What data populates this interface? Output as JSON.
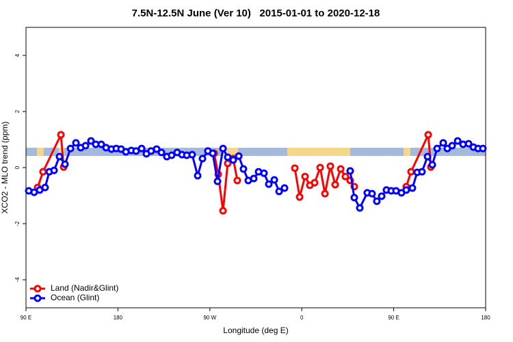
{
  "chart_data": {
    "type": "line",
    "title": "7.5N-12.5N June (Ver 10)   2015-01-01 to 2020-12-18",
    "x_label": "Longitude (deg E)",
    "y_label": "XCO2 - MLO trend (ppm)",
    "xlim": [
      90,
      540
    ],
    "xticks": [
      {
        "value": 90,
        "label": "90 E"
      },
      {
        "value": 180,
        "label": "180"
      },
      {
        "value": 270,
        "label": "90 W"
      },
      {
        "value": 360,
        "label": "0"
      },
      {
        "value": 450,
        "label": "90 E"
      },
      {
        "value": 540,
        "label": "180"
      }
    ],
    "ylim": [
      -5,
      5
    ],
    "yticks": [
      -4,
      -2,
      0,
      2,
      4
    ],
    "legend": "bottom-left",
    "series": [
      {
        "name": "Land (Nadir&Glint)",
        "color": "#ff0000",
        "x": [
          101.4,
          106.7,
          124.2,
          126.9,
          null,
          274.2,
          278.2,
          282.9,
          287.5,
          292.9,
          296.9,
          null,
          353.2,
          357.9,
          363.2,
          367.9,
          372.6,
          378.0,
          382.7,
          388.0,
          392.7,
          398.1,
          402.7,
          407.4,
          411.4,
          null,
          462.3,
          467.0,
          483.8,
          486.4
        ],
        "values": [
          -0.71,
          -0.15,
          1.17,
          0.02,
          null,
          0.51,
          -0.24,
          -1.54,
          0.15,
          0.32,
          -0.46,
          null,
          -0.02,
          -1.05,
          -0.32,
          -0.63,
          -0.54,
          0.0,
          -0.93,
          0.05,
          -0.61,
          -0.05,
          -0.32,
          -0.46,
          -0.68,
          null,
          -0.68,
          -0.15,
          1.17,
          0.02
        ]
      },
      {
        "name": "Ocean (Glint)",
        "color": "#0000ff",
        "x": [
          92.7,
          98.0,
          103.4,
          108.7,
          112.8,
          117.5,
          122.8,
          128.2,
          133.6,
          138.9,
          143.6,
          148.3,
          153.6,
          158.3,
          163.7,
          168.4,
          173.7,
          178.4,
          183.1,
          187.8,
          193.1,
          197.8,
          203.2,
          207.9,
          212.5,
          217.9,
          222.6,
          227.9,
          232.6,
          238.0,
          242.7,
          247.4,
          252.7,
          258.1,
          262.8,
          268.1,
          272.8,
          277.5,
          282.9,
          287.5,
          292.9,
          298.3,
          302.9,
          307.6,
          313.0,
          317.7,
          323.0,
          327.7,
          333.1,
          337.8,
          343.1,
          null,
          407.4,
          411.4,
          416.8,
          424.1,
          428.8,
          433.5,
          438.2,
          442.9,
          447.6,
          452.3,
          457.6,
          462.3,
          468.3,
          473.0,
          477.7,
          483.1,
          487.8,
          492.5,
          498.5,
          502.5,
          507.2,
          512.6,
          517.9,
          523.3,
          528.0,
          532.6,
          537.3
        ],
        "values": [
          -0.83,
          -0.88,
          -0.8,
          -0.71,
          -0.15,
          -0.1,
          0.39,
          0.12,
          0.68,
          0.88,
          0.71,
          0.78,
          0.95,
          0.83,
          0.83,
          0.71,
          0.66,
          0.68,
          0.66,
          0.56,
          0.61,
          0.59,
          0.68,
          0.49,
          0.59,
          0.66,
          0.54,
          0.39,
          0.44,
          0.54,
          0.46,
          0.44,
          0.46,
          -0.29,
          0.32,
          0.59,
          0.51,
          -0.49,
          0.68,
          0.37,
          0.27,
          0.41,
          -0.05,
          -0.46,
          -0.39,
          -0.15,
          -0.2,
          -0.59,
          -0.44,
          -0.85,
          -0.73,
          null,
          -0.12,
          -1.07,
          -1.44,
          -0.9,
          -0.93,
          -1.2,
          -1.02,
          -0.8,
          -0.83,
          -0.83,
          -0.9,
          -0.8,
          -0.73,
          -0.17,
          -0.15,
          0.39,
          0.1,
          0.68,
          0.88,
          0.68,
          0.78,
          0.95,
          0.83,
          0.85,
          0.73,
          0.68,
          0.68
        ]
      }
    ]
  }
}
